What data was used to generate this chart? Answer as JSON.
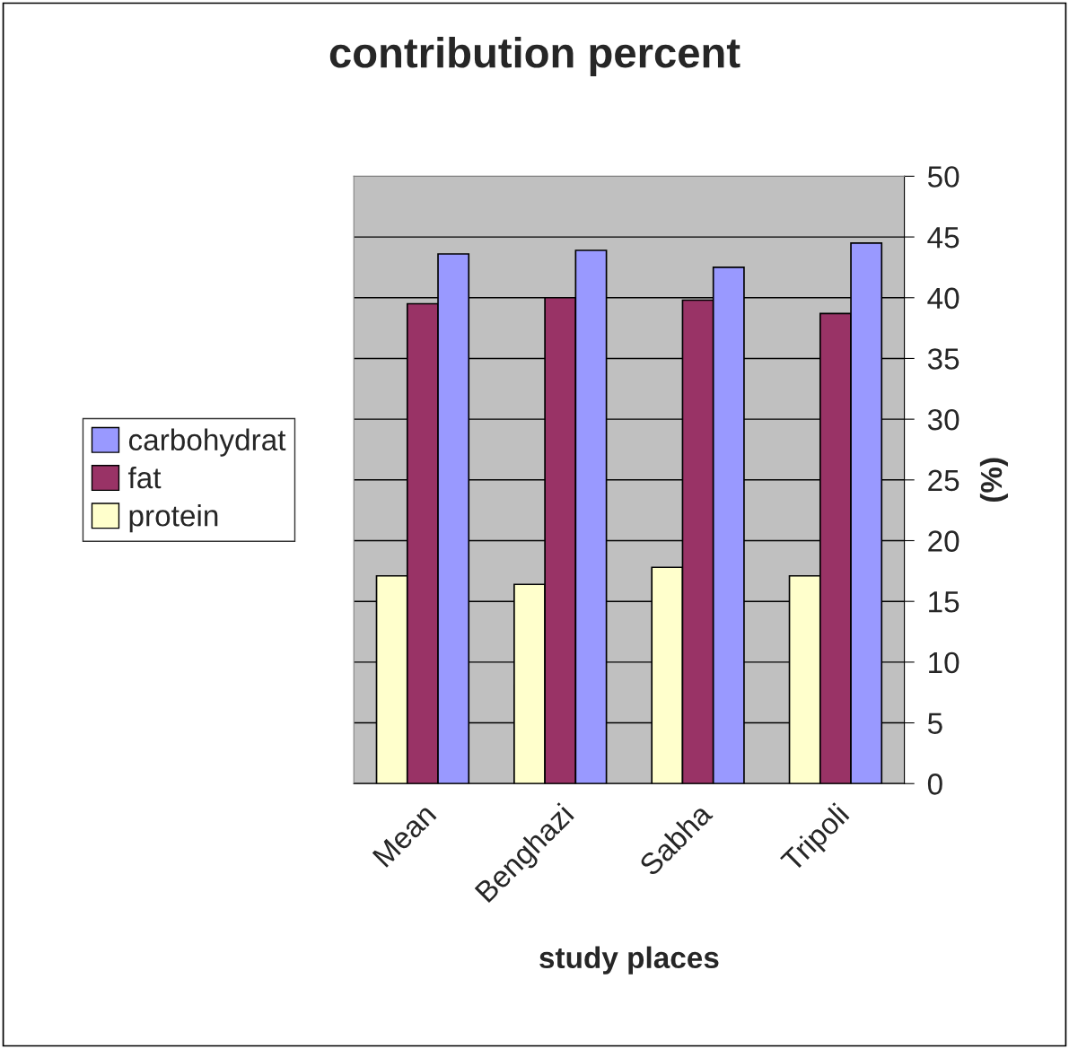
{
  "chart_data": {
    "type": "bar",
    "title": "contribution percent",
    "xlabel": "study places",
    "ylabel": "(%)",
    "categories": [
      "Mean",
      "Benghazi",
      "Sabha",
      "Tripoli"
    ],
    "series": [
      {
        "name": "protein",
        "color": "#ffffcc",
        "values": [
          17.1,
          16.4,
          17.8,
          17.1
        ]
      },
      {
        "name": "fat",
        "color": "#993366",
        "values": [
          39.5,
          40.0,
          39.8,
          38.7
        ]
      },
      {
        "name": "carbohydrat",
        "color": "#9999ff",
        "values": [
          43.6,
          43.9,
          42.5,
          44.5
        ]
      }
    ],
    "ylim": [
      0,
      50
    ],
    "yticks": [
      0,
      5,
      10,
      15,
      20,
      25,
      30,
      35,
      40,
      45,
      50
    ],
    "grid": "y",
    "legend": "left"
  }
}
